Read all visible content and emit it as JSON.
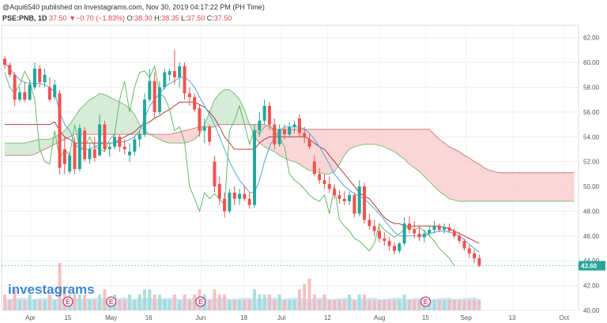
{
  "header": {
    "publish_line": "@Aqui6540 published on Investagrams.com, Nov 30, 2019 04:17:22 PM (PH Time)",
    "symbol_line": "PSE:PNB, 1D",
    "last": "37.50",
    "change": "▼−0.70 (−1.83%)",
    "open_label": "O:",
    "open_val": "38.30",
    "high_label": "H:",
    "high_val": "38.35",
    "low_label": "L:",
    "low_val": "37.50",
    "close_label": "C:",
    "close_val": "37.50"
  },
  "watermark": "investagrams",
  "colors": {
    "up": "#26a69a",
    "down": "#ef5350",
    "cloud_bull": "#c8e6c9",
    "cloud_bear": "#f8c8c8",
    "tenkan": "#4fa8e0",
    "kijun": "#b04040",
    "lagging": "#66bb6a",
    "vol_area": "#bfe0f5",
    "price_tag_bg": "#26a69a"
  },
  "chart_data": {
    "type": "candlestick",
    "ylim": [
      40,
      63
    ],
    "y_ticks": [
      "40.00",
      "42.00",
      "44.00",
      "46.00",
      "48.00",
      "50.00",
      "52.00",
      "54.00",
      "56.00",
      "58.00",
      "60.00",
      "62.00"
    ],
    "x_labels": [
      "Apr",
      "15",
      "May",
      "16",
      "Jun",
      "18",
      "Jul",
      "12",
      "Aug",
      "15",
      "Sep",
      "13",
      "Oct"
    ],
    "last_price_label": "43.60",
    "last_price": 43.6,
    "earnings_markers": [
      "E",
      "E",
      "E",
      "E"
    ],
    "candles": [
      [
        60.3,
        60.5,
        59.5,
        59.8
      ],
      [
        59.8,
        60.0,
        58.8,
        59.0
      ],
      [
        59.0,
        59.2,
        56.5,
        57.0
      ],
      [
        57.0,
        58.0,
        56.8,
        57.6
      ],
      [
        57.6,
        58.4,
        56.8,
        57.0
      ],
      [
        57.0,
        58.6,
        56.9,
        58.2
      ],
      [
        58.0,
        60.0,
        57.8,
        59.5
      ],
      [
        59.5,
        59.8,
        58.0,
        58.4
      ],
      [
        58.4,
        59.5,
        58.0,
        59.0
      ],
      [
        58.0,
        58.8,
        56.8,
        57.0
      ],
      [
        57.2,
        58.6,
        57.0,
        58.2
      ],
      [
        57.5,
        57.8,
        51.0,
        51.5
      ],
      [
        53.0,
        54.0,
        51.0,
        51.8
      ],
      [
        51.2,
        52.8,
        51.0,
        52.5
      ],
      [
        53.5,
        54.0,
        51.0,
        51.4
      ],
      [
        51.4,
        55.0,
        51.2,
        54.7
      ],
      [
        54.5,
        54.8,
        52.0,
        52.2
      ],
      [
        52.2,
        53.4,
        51.8,
        53.0
      ],
      [
        53.0,
        54.0,
        52.0,
        52.3
      ],
      [
        52.5,
        55.8,
        52.4,
        55.0
      ],
      [
        55.0,
        55.3,
        52.8,
        53.0
      ],
      [
        53.0,
        53.5,
        52.4,
        53.2
      ],
      [
        53.2,
        54.3,
        53.0,
        54.0
      ],
      [
        54.0,
        54.2,
        52.8,
        53.2
      ],
      [
        53.2,
        53.8,
        52.6,
        53.0
      ],
      [
        52.5,
        53.5,
        52.0,
        52.8
      ],
      [
        52.8,
        54.0,
        52.5,
        53.8
      ],
      [
        53.8,
        54.5,
        53.2,
        54.2
      ],
      [
        54.2,
        57.5,
        54.0,
        57.0
      ],
      [
        57.0,
        59.5,
        56.8,
        58.5
      ],
      [
        58.5,
        59.2,
        55.5,
        56.0
      ],
      [
        56.0,
        58.5,
        55.8,
        58.0
      ],
      [
        58.0,
        59.5,
        57.8,
        59.2
      ],
      [
        59.0,
        59.5,
        58.5,
        59.3
      ],
      [
        59.3,
        61.0,
        58.2,
        58.8
      ],
      [
        58.8,
        60.0,
        58.0,
        59.7
      ],
      [
        59.7,
        60.0,
        57.0,
        57.5
      ],
      [
        57.5,
        58.0,
        56.5,
        57.2
      ],
      [
        57.2,
        57.5,
        56.0,
        56.2
      ],
      [
        56.3,
        56.6,
        54.0,
        54.5
      ],
      [
        54.5,
        55.5,
        53.5,
        54.8
      ],
      [
        54.8,
        55.0,
        53.3,
        53.6
      ],
      [
        52.0,
        52.5,
        49.5,
        50.0
      ],
      [
        50.2,
        50.8,
        48.5,
        49.0
      ],
      [
        49.0,
        49.5,
        47.5,
        48.0
      ],
      [
        48.0,
        49.8,
        47.8,
        49.5
      ],
      [
        49.5,
        50.0,
        48.5,
        49.0
      ],
      [
        49.0,
        49.8,
        48.5,
        49.4
      ],
      [
        49.4,
        50.0,
        48.8,
        49.0
      ],
      [
        49.0,
        49.5,
        48.2,
        48.5
      ],
      [
        48.5,
        55.0,
        48.3,
        54.5
      ],
      [
        54.5,
        56.0,
        54.0,
        55.3
      ],
      [
        55.3,
        57.0,
        55.0,
        56.5
      ],
      [
        56.5,
        56.8,
        54.5,
        55.0
      ],
      [
        55.0,
        55.5,
        53.0,
        53.4
      ],
      [
        53.4,
        55.0,
        53.2,
        54.6
      ],
      [
        54.6,
        55.0,
        53.8,
        54.2
      ],
      [
        54.2,
        55.2,
        54.0,
        54.8
      ],
      [
        54.8,
        55.3,
        54.3,
        55.0
      ],
      [
        55.5,
        55.8,
        54.0,
        54.3
      ],
      [
        54.3,
        54.8,
        53.5,
        54.0
      ],
      [
        53.8,
        54.2,
        53.0,
        53.2
      ],
      [
        52.0,
        52.5,
        50.8,
        51.0
      ],
      [
        51.0,
        51.5,
        50.2,
        50.5
      ],
      [
        50.5,
        51.0,
        49.8,
        50.2
      ],
      [
        50.2,
        50.8,
        49.5,
        49.8
      ],
      [
        49.8,
        50.2,
        49.0,
        49.3
      ],
      [
        49.3,
        49.7,
        48.6,
        49.0
      ],
      [
        49.0,
        49.6,
        48.5,
        48.8
      ],
      [
        48.8,
        49.6,
        48.5,
        49.3
      ],
      [
        49.3,
        49.5,
        47.5,
        47.8
      ],
      [
        47.8,
        50.5,
        47.6,
        50.0
      ],
      [
        50.0,
        50.3,
        47.0,
        47.3
      ],
      [
        47.3,
        47.8,
        46.5,
        46.8
      ],
      [
        46.8,
        47.3,
        46.0,
        46.4
      ],
      [
        46.4,
        46.8,
        45.5,
        45.8
      ],
      [
        45.8,
        46.3,
        45.2,
        45.6
      ],
      [
        45.6,
        45.9,
        44.8,
        45.2
      ],
      [
        45.2,
        45.5,
        44.5,
        44.8
      ],
      [
        44.8,
        45.5,
        44.6,
        45.4
      ],
      [
        45.4,
        47.5,
        45.2,
        47.0
      ],
      [
        47.0,
        47.6,
        46.2,
        46.5
      ],
      [
        46.5,
        47.2,
        45.8,
        46.2
      ],
      [
        46.2,
        46.8,
        45.6,
        45.9
      ],
      [
        45.9,
        46.5,
        45.5,
        46.2
      ],
      [
        46.2,
        46.8,
        46.0,
        46.5
      ],
      [
        46.5,
        47.2,
        46.2,
        46.8
      ],
      [
        46.8,
        47.0,
        46.3,
        46.5
      ],
      [
        46.5,
        47.0,
        46.2,
        46.7
      ],
      [
        46.7,
        47.0,
        46.3,
        46.4
      ],
      [
        46.4,
        46.6,
        45.8,
        46.0
      ],
      [
        46.0,
        46.3,
        45.4,
        45.6
      ],
      [
        45.6,
        45.8,
        44.8,
        45.0
      ],
      [
        45.0,
        45.3,
        44.2,
        44.6
      ],
      [
        44.6,
        44.9,
        43.8,
        44.2
      ],
      [
        44.2,
        44.5,
        43.5,
        43.6
      ]
    ],
    "volume": [
      3,
      2,
      4,
      2,
      2,
      3,
      2,
      2,
      2,
      3,
      2,
      9,
      4,
      3,
      3,
      3,
      3,
      2,
      2,
      3,
      4,
      2,
      3,
      2,
      2,
      3,
      2,
      3,
      4,
      4,
      3,
      3,
      2,
      2,
      3,
      2,
      3,
      2,
      3,
      4,
      3,
      2,
      4,
      3,
      3,
      2,
      2,
      2,
      2,
      2,
      4,
      3,
      3,
      3,
      2,
      3,
      2,
      2,
      2,
      4,
      5,
      6,
      3,
      2,
      3,
      2,
      2,
      2,
      2,
      3,
      2,
      3,
      3,
      2,
      2,
      2,
      2,
      2,
      2,
      2,
      3,
      2,
      2,
      2,
      2,
      2,
      2,
      2,
      2,
      2,
      2,
      2,
      2,
      2,
      2,
      2
    ],
    "tenkan": [
      60,
      59.5,
      59,
      58.6,
      58.4,
      58.3,
      58.3,
      58.3,
      58.2,
      58,
      57.6,
      56,
      55,
      54.5,
      53.5,
      53,
      53,
      53,
      53.2,
      53.4,
      53.5,
      53.5,
      53.5,
      53.6,
      53.6,
      53.8,
      54,
      54.5,
      55.5,
      56.5,
      57,
      57.5,
      58,
      58.3,
      58.5,
      58.8,
      58.8,
      58.5,
      58,
      57.2,
      56.5,
      55.8,
      55,
      54,
      53,
      52,
      51.2,
      50.5,
      50,
      49.5,
      49.5,
      50.5,
      52,
      53.2,
      54,
      54.5,
      54.8,
      54.8,
      54.8,
      54.8,
      54.6,
      54.3,
      53.8,
      53.2,
      52.5,
      51.8,
      51,
      50.5,
      50,
      49.7,
      49.4,
      49.2,
      49,
      48.6,
      48.2,
      47.8,
      47.3,
      46.8,
      46.3,
      46,
      46,
      46,
      46,
      46,
      46,
      46.2,
      46.3,
      46.4,
      46.4,
      46.3,
      46.2,
      46,
      45.7,
      45.3,
      45,
      44.7
    ],
    "kijun": [
      55,
      55,
      55,
      55,
      55,
      55,
      55,
      55,
      55,
      55,
      55.2,
      54.5,
      54,
      53.8,
      53.5,
      53.5,
      53.5,
      53.5,
      53.5,
      53.5,
      53.5,
      53.5,
      53.5,
      53.8,
      54,
      54.2,
      54.4,
      54.8,
      55,
      55.2,
      55.5,
      55.7,
      56,
      56.2,
      56.5,
      56.8,
      56.8,
      56.8,
      56.8,
      56.6,
      56.4,
      56,
      55.5,
      54.8,
      54,
      53.5,
      53,
      53,
      53,
      53,
      53,
      53.5,
      53.8,
      54,
      54,
      54,
      54,
      54,
      54,
      54,
      54,
      53.8,
      53.5,
      53.2,
      53,
      52.5,
      52,
      51.5,
      51,
      50.5,
      50,
      49.5,
      49.2,
      49,
      48.5,
      48,
      47.5,
      47.2,
      47,
      47,
      46.8,
      46.8,
      46.8,
      46.8,
      46.8,
      46.8,
      46.8,
      46.8,
      46.7,
      46.6,
      46.4,
      46.2,
      46,
      45.8,
      45.6,
      45.4
    ],
    "lagging": [
      59.2,
      58,
      57.5,
      58.2,
      59.3,
      58.5,
      57,
      53,
      52,
      51.8,
      54.5,
      52.2,
      53,
      52.5,
      55,
      53,
      53.2,
      54,
      53.2,
      53,
      52.8,
      53.8,
      54.2,
      57,
      58.5,
      56,
      58,
      59.2,
      59.3,
      58.8,
      59.7,
      57.5,
      57.2,
      56.2,
      54.5,
      54.8,
      53.6,
      50,
      49,
      48,
      49.5,
      49,
      49.4,
      49,
      48.5,
      54.5,
      55.3,
      56.5,
      55,
      53.4,
      54.6,
      54.2,
      54.8,
      55,
      54.3,
      54,
      53.2,
      51,
      50.5,
      50.2,
      49.8,
      49.3,
      49,
      48.8,
      49.3,
      47.8,
      50,
      47.3,
      46.8,
      46.4,
      45.8,
      45.6,
      45.2,
      44.8,
      45.4,
      47,
      46.5,
      46.2,
      45.9,
      46.2,
      46.5,
      46.8,
      46.5,
      46.7,
      46.4,
      46,
      45.6,
      45,
      44.6,
      44.2,
      43.6
    ],
    "senkou_a": [
      53.5,
      53.5,
      53.5,
      53.5,
      53.5,
      53.6,
      53.7,
      53.8,
      53.8,
      53.8,
      54,
      54.2,
      54.5,
      55,
      55.6,
      56.2,
      56.6,
      57,
      57.2,
      57.5,
      57.4,
      57.2,
      57,
      56.8,
      56.6,
      56.3,
      55.8,
      55,
      54.5,
      54.2,
      54,
      53.8,
      53.6,
      53.5,
      53.5,
      53.5,
      53.5,
      53.6,
      53.8,
      54.2,
      55,
      56,
      57,
      57.5,
      57.8,
      57.8,
      57.5,
      57,
      56.2,
      55,
      54,
      53.5,
      53.2,
      53,
      52.8,
      52.5,
      52.3,
      52.1,
      52,
      51.8,
      51.5,
      51.3,
      51.2,
      51.1,
      51,
      51,
      51.2,
      51.8,
      52.5,
      53,
      53.2,
      53.3,
      53.4,
      53.4,
      53.4,
      53.3,
      53.2,
      53,
      52.8,
      52.5,
      52.2,
      51.8,
      51.5,
      51.2,
      50.8,
      50.4,
      50,
      49.6,
      49.3,
      49,
      48.9,
      48.8,
      48.8,
      48.8,
      48.8,
      48.8,
      48.8,
      48.8,
      48.8,
      48.8,
      48.8,
      48.8,
      48.8,
      48.8,
      48.8,
      48.8,
      48.8,
      48.8,
      48.8,
      48.8,
      48.8,
      48.8,
      48.8,
      48.8,
      48.8,
      48.8,
      48.8,
      48.8
    ],
    "senkou_b": [
      52.5,
      52.5,
      52.5,
      52.5,
      52.5,
      52.5,
      52.6,
      52.8,
      53,
      53.2,
      53.4,
      53.6,
      53.8,
      54,
      54.2,
      54.2,
      54.2,
      54.2,
      54.2,
      54.2,
      54.2,
      54.2,
      54.2,
      54.2,
      54.2,
      54.2,
      54.2,
      54.2,
      54.2,
      54.2,
      54.2,
      54.2,
      54.2,
      54.2,
      54.3,
      54.4,
      54.5,
      54.6,
      54.7,
      54.8,
      54.8,
      54.8,
      54.8,
      55,
      55,
      55,
      55,
      55,
      55,
      55,
      55,
      55,
      55,
      54.8,
      54.6,
      54.6,
      54.6,
      54.6,
      54.6,
      54.6,
      54.6,
      54.6,
      54.6,
      54.6,
      54.6,
      54.6,
      54.6,
      54.6,
      54.6,
      54.6,
      54.6,
      54.6,
      54.6,
      54.6,
      54.6,
      54.6,
      54.6,
      54.6,
      54.6,
      54.6,
      54.6,
      54.6,
      54.6,
      54.6,
      54.6,
      54.6,
      54.2,
      53.8,
      53.5,
      53.2,
      53,
      52.8,
      52.5,
      52.3,
      52,
      51.8,
      51.5,
      51.3,
      51.2,
      51.1,
      51.1,
      51.1,
      51.1,
      51.1,
      51.1,
      51.1,
      51.1,
      51.1,
      51.1,
      51.1,
      51.1,
      51.1,
      51.1,
      51.1,
      51.1,
      51.1,
      51.1,
      51.1,
      51.1
    ]
  }
}
